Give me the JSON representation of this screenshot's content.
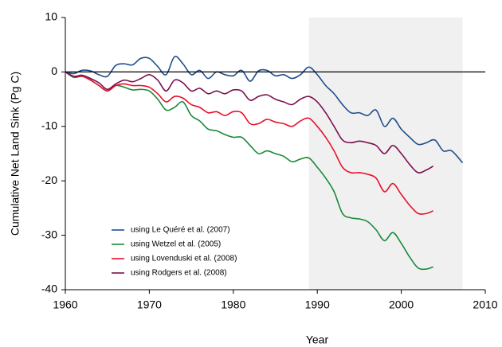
{
  "chart_data": {
    "type": "line",
    "x_label": "Year",
    "y_label": "Cumulative Net Land Sink (Pg C)",
    "xlim": [
      1960,
      2010
    ],
    "xticks": [
      1960,
      1970,
      1980,
      1990,
      2000,
      2010
    ],
    "ylim": [
      -40,
      10
    ],
    "yticks": [
      10,
      0,
      -10,
      -20,
      -30,
      -40
    ],
    "shaded_span": [
      1989,
      2007.3
    ],
    "shade_color": "#f0f0f0",
    "zero_line": true,
    "legend": "lower left",
    "series": [
      {
        "name": "using Le Quéré et al. (2007)",
        "color": "#1f4e8c",
        "x": [
          1960,
          1961,
          1962,
          1963,
          1964,
          1965,
          1966,
          1967,
          1968,
          1969,
          1970,
          1971,
          1972,
          1973,
          1974,
          1975,
          1976,
          1977,
          1978,
          1979,
          1980,
          1981,
          1982,
          1983,
          1984,
          1985,
          1986,
          1987,
          1988,
          1989,
          1990,
          1991,
          1992,
          1993,
          1994,
          1995,
          1996,
          1997,
          1998,
          1999,
          2000,
          2001,
          2002,
          2003,
          2004,
          2005,
          2006,
          2007.3
        ],
        "values": [
          0,
          -0.3,
          0.3,
          0.2,
          -0.5,
          -0.8,
          1.2,
          1.5,
          1.3,
          2.5,
          2.5,
          1.0,
          -0.5,
          2.8,
          1.5,
          -0.5,
          0.3,
          -1.2,
          0,
          -0.5,
          -0.7,
          0.3,
          -1.7,
          0.2,
          0.3,
          -0.7,
          -0.5,
          -1.2,
          -0.5,
          0.9,
          -0.5,
          -2.5,
          -4,
          -6,
          -7.5,
          -7.5,
          -8,
          -7,
          -10,
          -8.5,
          -10.5,
          -12,
          -13.3,
          -13,
          -12.5,
          -14.5,
          -14.5,
          -16.7
        ]
      },
      {
        "name": "using Wetzel et al. (2005)",
        "color": "#1a8a3a",
        "x": [
          1960,
          1961,
          1962,
          1963,
          1964,
          1965,
          1966,
          1967,
          1968,
          1969,
          1970,
          1971,
          1972,
          1973,
          1974,
          1975,
          1976,
          1977,
          1978,
          1979,
          1980,
          1981,
          1982,
          1983,
          1984,
          1985,
          1986,
          1987,
          1988,
          1989,
          1990,
          1991,
          1992,
          1993,
          1994,
          1995,
          1996,
          1997,
          1998,
          1999,
          2000,
          2001,
          2002,
          2003,
          2003.8
        ],
        "values": [
          0,
          -1,
          -0.8,
          -1.5,
          -2.5,
          -3.5,
          -2.5,
          -2.8,
          -3.3,
          -3.2,
          -3.5,
          -5,
          -7,
          -6.5,
          -5.5,
          -8,
          -9,
          -10.5,
          -10.8,
          -11.5,
          -12,
          -12,
          -13.5,
          -15,
          -14.5,
          -15,
          -15.5,
          -16.5,
          -16,
          -15.8,
          -17.5,
          -19.5,
          -22,
          -26,
          -26.8,
          -27,
          -27.5,
          -29,
          -31,
          -29.5,
          -31.5,
          -34,
          -36,
          -36.2,
          -35.8
        ]
      },
      {
        "name": "using Lovenduski et al. (2008)",
        "color": "#e8102a",
        "x": [
          1960,
          1961,
          1962,
          1963,
          1964,
          1965,
          1966,
          1967,
          1968,
          1969,
          1970,
          1971,
          1972,
          1973,
          1974,
          1975,
          1976,
          1977,
          1978,
          1979,
          1980,
          1981,
          1982,
          1983,
          1984,
          1985,
          1986,
          1987,
          1988,
          1989,
          1990,
          1991,
          1992,
          1993,
          1994,
          1995,
          1996,
          1997,
          1998,
          1999,
          2000,
          2001,
          2002,
          2003,
          2003.8
        ],
        "values": [
          0,
          -0.8,
          -0.8,
          -1.5,
          -2.5,
          -3.5,
          -2.5,
          -2.2,
          -2.5,
          -2.5,
          -2.8,
          -4,
          -5.5,
          -4.5,
          -4.8,
          -6,
          -6.5,
          -7.5,
          -7.3,
          -8,
          -7.3,
          -7.5,
          -9.5,
          -9.5,
          -8.7,
          -9.2,
          -9.5,
          -10,
          -9,
          -8.5,
          -10,
          -12,
          -14.5,
          -17.5,
          -18.5,
          -18.5,
          -18.8,
          -19.5,
          -22,
          -20.5,
          -22.5,
          -24.5,
          -26,
          -26,
          -25.5
        ]
      },
      {
        "name": "using Rodgers et al. (2008)",
        "color": "#7a1050",
        "x": [
          1960,
          1961,
          1962,
          1963,
          1964,
          1965,
          1966,
          1967,
          1968,
          1969,
          1970,
          1971,
          1972,
          1973,
          1974,
          1975,
          1976,
          1977,
          1978,
          1979,
          1980,
          1981,
          1982,
          1983,
          1984,
          1985,
          1986,
          1987,
          1988,
          1989,
          1990,
          1991,
          1992,
          1993,
          1994,
          1995,
          1996,
          1997,
          1998,
          1999,
          2000,
          2001,
          2002,
          2003,
          2003.8
        ],
        "values": [
          0,
          -0.8,
          -0.6,
          -1.2,
          -2,
          -3.2,
          -2.2,
          -1.5,
          -1.8,
          -1.2,
          -0.5,
          -1.5,
          -3.5,
          -1.5,
          -2,
          -3.5,
          -3,
          -4,
          -3.5,
          -4,
          -3.3,
          -3.5,
          -5.2,
          -4.5,
          -4.2,
          -5,
          -5.5,
          -6,
          -5,
          -4.5,
          -5.5,
          -7.5,
          -10,
          -12.5,
          -13,
          -12.7,
          -13,
          -13.5,
          -15,
          -13.5,
          -15,
          -17,
          -18.5,
          -18,
          -17.3
        ]
      }
    ]
  }
}
